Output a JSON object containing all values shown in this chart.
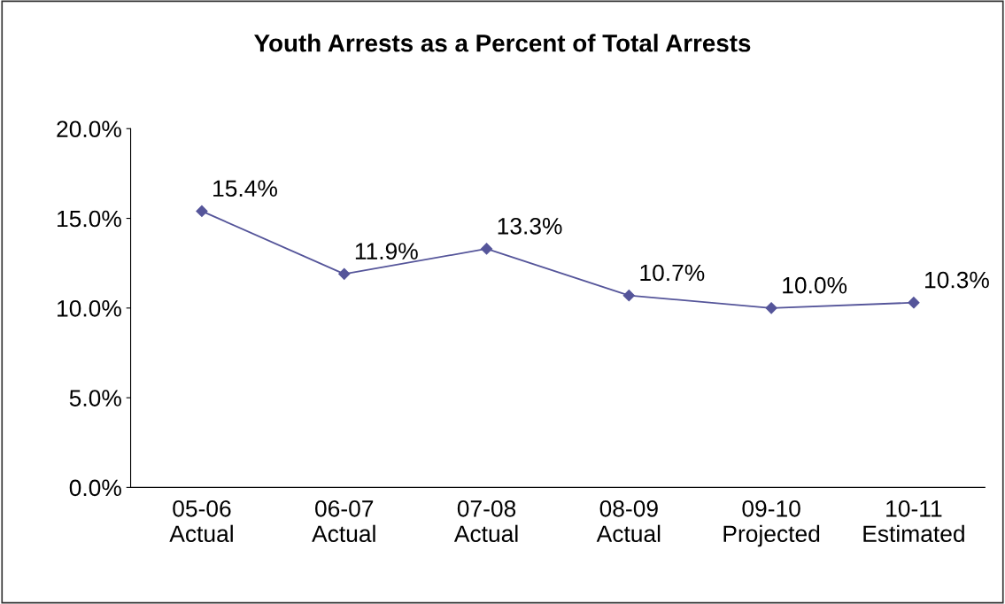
{
  "chart_data": {
    "type": "line",
    "title": "Youth Arrests as a Percent of Total Arrests",
    "categories": [
      "05-06\nActual",
      "06-07\nActual",
      "07-08\nActual",
      "08-09\nActual",
      "09-10\nProjected",
      "10-11\nEstimated"
    ],
    "series": [
      {
        "color": "#55559a",
        "values": [
          15.4,
          11.9,
          13.3,
          10.7,
          10.0,
          10.3
        ],
        "value_labels": [
          "15.4%",
          "11.9%",
          "13.3%",
          "10.7%",
          "10.0%",
          "10.3%"
        ]
      }
    ],
    "ylim": [
      0,
      20
    ],
    "yticks": [
      {
        "value": 0,
        "label": "0.0%"
      },
      {
        "value": 5,
        "label": "5.0%"
      },
      {
        "value": 10,
        "label": "10.0%"
      },
      {
        "value": 15,
        "label": "15.0%"
      },
      {
        "value": 20,
        "label": "20.0%"
      }
    ],
    "marker": "diamond",
    "line_style": "solid",
    "grid": false,
    "legend": false
  }
}
